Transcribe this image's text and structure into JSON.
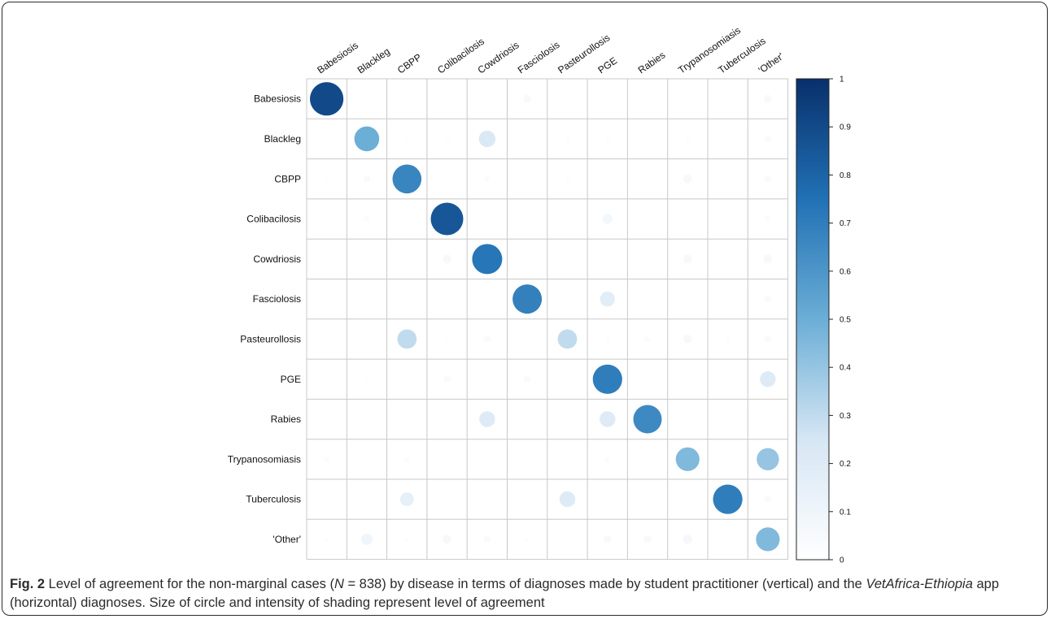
{
  "caption": {
    "fig_label": "Fig. 2",
    "part1": " Level of agreement for the non-marginal cases (",
    "n_symbol": "N",
    "part2": " = 838) by disease in terms of diagnoses made by student practitioner (vertical) and the ",
    "app_name": "VetAfrica-Ethiopia",
    "part3": " app (horizontal) diagnoses. Size of circle and intensity of shading represent level of agreement"
  },
  "chart_data": {
    "type": "heatmap",
    "columns": [
      "Babesiosis",
      "Blackleg",
      "CBPP",
      "Colibacilosis",
      "Cowdriosis",
      "Fasciolosis",
      "Pasteurollosis",
      "PGE",
      "Rabies",
      "Trypanosomiasis",
      "Tuberculosis",
      "'Other'"
    ],
    "rows": [
      "Babesiosis",
      "Blackleg",
      "CBPP",
      "Colibacilosis",
      "Cowdriosis",
      "Fasciolosis",
      "Pasteurollosis",
      "PGE",
      "Rabies",
      "Trypanosomiasis",
      "Tuberculosis",
      "'Other'"
    ],
    "values": [
      [
        0.9,
        0,
        0,
        0,
        0,
        0.05,
        0,
        0,
        0,
        0,
        0,
        0.05
      ],
      [
        0,
        0.5,
        0.02,
        0.02,
        0.22,
        0.01,
        0.02,
        0.02,
        0,
        0.02,
        0,
        0.04
      ],
      [
        0.02,
        0.04,
        0.67,
        0,
        0.03,
        0,
        0.02,
        0,
        0.01,
        0.06,
        0,
        0.04
      ],
      [
        0,
        0.03,
        0,
        0.85,
        0,
        0,
        0,
        0.08,
        0,
        0,
        0,
        0.03
      ],
      [
        0,
        0,
        0,
        0.06,
        0.73,
        0,
        0,
        0,
        0,
        0.06,
        0,
        0.06
      ],
      [
        0,
        0,
        0,
        0,
        0.01,
        0.69,
        0,
        0.18,
        0,
        0.01,
        0,
        0.04
      ],
      [
        0,
        0.01,
        0.3,
        0.02,
        0.04,
        0,
        0.3,
        0.02,
        0.03,
        0.06,
        0.02,
        0.04
      ],
      [
        0,
        0.01,
        0,
        0.04,
        0,
        0.04,
        0,
        0.7,
        0.01,
        0,
        0,
        0.2
      ],
      [
        0,
        0,
        0,
        0,
        0.2,
        0,
        0,
        0.2,
        0.65,
        0,
        0,
        0
      ],
      [
        0.03,
        0,
        0.03,
        0,
        0,
        0,
        0,
        0.03,
        0,
        0.45,
        0,
        0.4
      ],
      [
        0,
        0,
        0.15,
        0,
        0,
        0,
        0.2,
        0,
        0,
        0,
        0.7,
        0.04
      ],
      [
        0.02,
        0.1,
        0.02,
        0.06,
        0.04,
        0.02,
        0.01,
        0.05,
        0.05,
        0.07,
        0.01,
        0.45
      ]
    ],
    "colorbar": {
      "range": [
        0,
        1
      ],
      "ticks": [
        "1",
        "0.9",
        "0.8",
        "0.7",
        "0.6",
        "0.5",
        "0.4",
        "0.3",
        "0.2",
        "0.1",
        "0"
      ]
    },
    "colors": {
      "low": "#f7fbff",
      "high": "#08306b",
      "grid": "#c8c8c8"
    },
    "xlabel": "",
    "ylabel": ""
  }
}
